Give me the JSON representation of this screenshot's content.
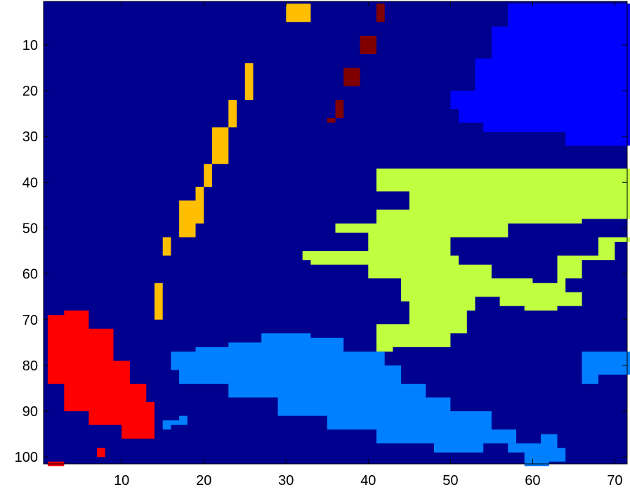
{
  "chart_data": {
    "type": "heatmap",
    "title": "",
    "xlabel": "",
    "ylabel": "",
    "xlim": [
      0.5,
      71.5
    ],
    "ylim": [
      0.5,
      101.5
    ],
    "y_reversed": true,
    "x_ticks": [
      10,
      20,
      30,
      40,
      50,
      60,
      70
    ],
    "y_ticks": [
      10,
      20,
      30,
      40,
      50,
      60,
      70,
      80,
      90,
      100
    ],
    "x_tick_labels": [
      "10",
      "20",
      "30",
      "40",
      "50",
      "60",
      "70"
    ],
    "y_tick_labels": [
      "10",
      "20",
      "30",
      "40",
      "50",
      "60",
      "70",
      "80",
      "90",
      "100"
    ],
    "background_color": "#00008f",
    "grid": false,
    "regions": [
      {
        "color": "#ffbf00",
        "outline": [
          [
            30,
            1
          ],
          [
            35,
            1
          ],
          [
            33,
            5
          ],
          [
            30,
            9
          ],
          [
            28,
            14
          ],
          [
            25,
            22
          ],
          [
            23,
            28
          ],
          [
            21,
            36
          ],
          [
            20,
            44
          ],
          [
            17,
            52
          ],
          [
            15,
            62
          ],
          [
            14,
            67
          ],
          [
            14,
            70
          ],
          [
            15,
            63
          ],
          [
            15,
            56
          ],
          [
            16,
            52
          ],
          [
            19,
            49
          ],
          [
            20,
            44
          ],
          [
            19,
            41
          ],
          [
            21,
            36
          ],
          [
            23,
            28
          ],
          [
            24,
            22
          ],
          [
            26,
            14
          ],
          [
            28,
            9
          ]
        ]
      },
      {
        "color": "#800000",
        "outline": [
          [
            42,
            1
          ],
          [
            43,
            1
          ],
          [
            41,
            8
          ],
          [
            39,
            15
          ],
          [
            37,
            22
          ],
          [
            36,
            27
          ],
          [
            35,
            31
          ],
          [
            34,
            31
          ],
          [
            35,
            26
          ],
          [
            37,
            19
          ],
          [
            39,
            12
          ],
          [
            41,
            5
          ]
        ]
      },
      {
        "color": "#0000ff",
        "outline": [
          [
            57,
            1
          ],
          [
            72,
            1
          ],
          [
            72,
            32
          ],
          [
            64,
            29
          ],
          [
            54,
            27
          ],
          [
            51,
            24
          ],
          [
            50,
            20
          ],
          [
            53,
            13
          ],
          [
            55,
            6
          ]
        ]
      },
      {
        "color": "#bfff40",
        "outline": [
          [
            41,
            37
          ],
          [
            57,
            37
          ],
          [
            72,
            44
          ],
          [
            72,
            48
          ],
          [
            66,
            52
          ],
          [
            60,
            55
          ],
          [
            58,
            60
          ],
          [
            60,
            62
          ],
          [
            63,
            56
          ],
          [
            68,
            52
          ],
          [
            72,
            53
          ],
          [
            70,
            57
          ],
          [
            66,
            61
          ],
          [
            64,
            64
          ],
          [
            66,
            67
          ],
          [
            63,
            68
          ],
          [
            59,
            67
          ],
          [
            56,
            65
          ],
          [
            53,
            68
          ],
          [
            52,
            73
          ],
          [
            50,
            76
          ],
          [
            43,
            77
          ],
          [
            41,
            75
          ],
          [
            41,
            71
          ],
          [
            45,
            66
          ],
          [
            44,
            61
          ],
          [
            40,
            58
          ],
          [
            33,
            57
          ],
          [
            32,
            55
          ],
          [
            38,
            55
          ],
          [
            40,
            51
          ],
          [
            36,
            50
          ],
          [
            36,
            49
          ],
          [
            41,
            46
          ],
          [
            45,
            42
          ],
          [
            41,
            40
          ]
        ]
      },
      {
        "color": "#00008f",
        "outline": [
          [
            50,
            52
          ],
          [
            57,
            49
          ],
          [
            63,
            49
          ],
          [
            68,
            52
          ],
          [
            63,
            57
          ],
          [
            61,
            61
          ],
          [
            58,
            61
          ],
          [
            55,
            58
          ],
          [
            51,
            56
          ]
        ]
      },
      {
        "color": "#0080ff",
        "outline": [
          [
            27,
            73
          ],
          [
            33,
            74
          ],
          [
            37,
            77
          ],
          [
            42,
            80
          ],
          [
            44,
            84
          ],
          [
            47,
            87
          ],
          [
            50,
            90
          ],
          [
            55,
            94
          ],
          [
            58,
            97
          ],
          [
            54,
            99
          ],
          [
            48,
            97
          ],
          [
            41,
            94
          ],
          [
            35,
            91
          ],
          [
            29,
            87
          ],
          [
            23,
            84
          ],
          [
            17,
            81
          ],
          [
            16,
            77
          ],
          [
            19,
            76
          ],
          [
            23,
            75
          ]
        ]
      },
      {
        "color": "#0080ff",
        "outline": [
          [
            15,
            92
          ],
          [
            17,
            91
          ],
          [
            19,
            91
          ],
          [
            18,
            93
          ],
          [
            16,
            94
          ]
        ]
      },
      {
        "color": "#0080ff",
        "outline": [
          [
            66,
            77
          ],
          [
            72,
            77
          ],
          [
            72,
            82
          ],
          [
            68,
            84
          ],
          [
            66,
            82
          ]
        ]
      },
      {
        "color": "#0080ff",
        "outline": [
          [
            61,
            95
          ],
          [
            63,
            92
          ],
          [
            63,
            98
          ],
          [
            64,
            101
          ],
          [
            62,
            102
          ],
          [
            59,
            99
          ],
          [
            57,
            97
          ],
          [
            60,
            97
          ]
        ]
      },
      {
        "color": "#0080ff",
        "outline": [
          [
            68,
            95
          ],
          [
            69,
            95
          ],
          [
            68,
            99
          ],
          [
            67,
            99
          ]
        ]
      },
      {
        "color": "#ff0000",
        "outline": [
          [
            1,
            69
          ],
          [
            3,
            68
          ],
          [
            6,
            72
          ],
          [
            9,
            79
          ],
          [
            11,
            84
          ],
          [
            13,
            88
          ],
          [
            14,
            93
          ],
          [
            14,
            96
          ],
          [
            11,
            98
          ],
          [
            8,
            100
          ],
          [
            7,
            100
          ],
          [
            7,
            98
          ],
          [
            11,
            96
          ],
          [
            10,
            93
          ],
          [
            6,
            90
          ],
          [
            3,
            84
          ],
          [
            1,
            77
          ]
        ]
      },
      {
        "color": "#ff0000",
        "outline": [
          [
            1,
            101
          ],
          [
            3,
            102
          ],
          [
            1,
            102
          ]
        ]
      }
    ]
  }
}
